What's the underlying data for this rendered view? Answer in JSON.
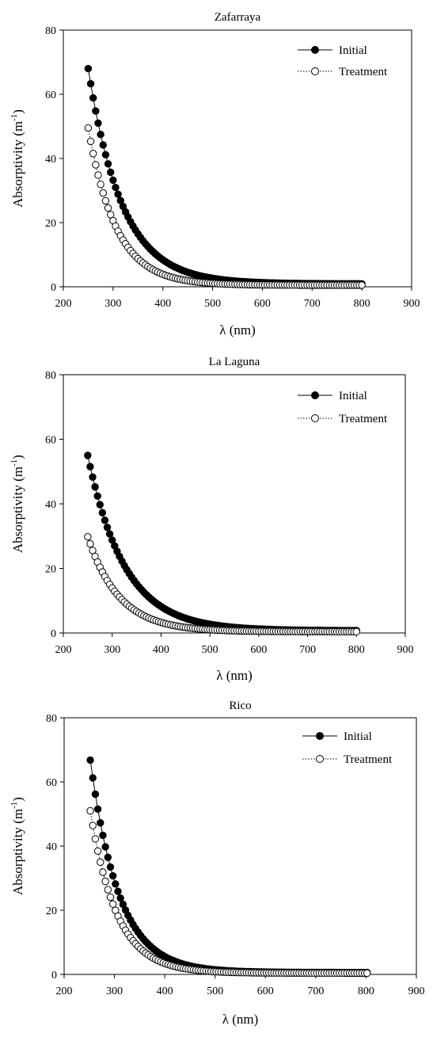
{
  "chart_data": [
    {
      "type": "scatter",
      "title": "Zafarraya",
      "xlabel": "λ (nm)",
      "ylabel_main": "Absorptivity (m",
      "ylabel_sup": "-1",
      "ylabel_end": ")",
      "xlim": [
        200,
        900
      ],
      "ylim": [
        0,
        80
      ],
      "xticks": [
        "200",
        "300",
        "400",
        "500",
        "600",
        "700",
        "800",
        "900"
      ],
      "yticks": [
        "0",
        "20",
        "40",
        "60",
        "80"
      ],
      "legend_position": "top-right",
      "x_range": [
        250,
        800
      ],
      "x_step": 5,
      "series": [
        {
          "name": "Initial",
          "marker": "filled-circle",
          "line": "solid",
          "a0": 68.0,
          "s": 0.0146,
          "floor": 0.9
        },
        {
          "name": "Treatment",
          "marker": "open-circle",
          "line": "dotted",
          "a0": 49.5,
          "s": 0.0178,
          "floor": 0.5
        }
      ]
    },
    {
      "type": "scatter",
      "title": "La Laguna",
      "xlabel": "λ (nm)",
      "ylabel_main": "Absorptivity (m",
      "ylabel_sup": "-1",
      "ylabel_end": ")",
      "xlim": [
        200,
        900
      ],
      "ylim": [
        0,
        80
      ],
      "xticks": [
        "200",
        "300",
        "400",
        "500",
        "600",
        "700",
        "800",
        "900"
      ],
      "yticks": [
        "0",
        "20",
        "40",
        "60",
        "80"
      ],
      "legend_position": "top-right",
      "x_range": [
        250,
        800
      ],
      "x_step": 5,
      "series": [
        {
          "name": "Initial",
          "marker": "filled-circle",
          "line": "solid",
          "a0": 55.0,
          "s": 0.0132,
          "floor": 0.7
        },
        {
          "name": "Treatment",
          "marker": "open-circle",
          "line": "dotted",
          "a0": 29.8,
          "s": 0.0155,
          "floor": 0.4
        }
      ]
    },
    {
      "type": "scatter",
      "title": "Rico",
      "xlabel": "λ (nm)",
      "ylabel_main": "Absorptivity (m",
      "ylabel_sup": "-1",
      "ylabel_end": ")",
      "xlim": [
        200,
        900
      ],
      "ylim": [
        0,
        80
      ],
      "xticks": [
        "200",
        "300",
        "400",
        "500",
        "600",
        "700",
        "800",
        "900"
      ],
      "yticks": [
        "0",
        "20",
        "40",
        "60",
        "80"
      ],
      "legend_position": "top-right",
      "x_range": [
        252,
        805
      ],
      "x_step": 5,
      "series": [
        {
          "name": "Initial",
          "marker": "filled-circle",
          "line": "solid",
          "a0": 66.8,
          "s": 0.0175,
          "floor": 0.6
        },
        {
          "name": "Treatment",
          "marker": "open-circle",
          "line": "dotted",
          "a0": 51.0,
          "s": 0.019,
          "floor": 0.4
        }
      ]
    }
  ]
}
